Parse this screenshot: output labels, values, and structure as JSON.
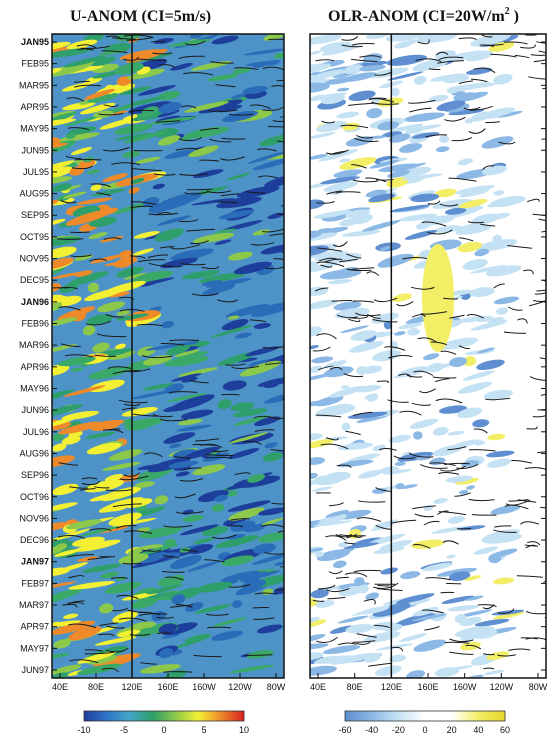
{
  "chart_data": [
    {
      "type": "heatmap",
      "title_main": "U-ANOM",
      "title_ci": "(CI=5m/s)",
      "x_ticks": [
        "40E",
        "80E",
        "120E",
        "160E",
        "160W",
        "120W",
        "80W"
      ],
      "y_ticks": [
        {
          "label": "JAN95",
          "bold": true
        },
        {
          "label": "FEB95",
          "bold": false
        },
        {
          "label": "MAR95",
          "bold": false
        },
        {
          "label": "APR95",
          "bold": false
        },
        {
          "label": "MAY95",
          "bold": false
        },
        {
          "label": "JUN95",
          "bold": false
        },
        {
          "label": "JUL95",
          "bold": false
        },
        {
          "label": "AUG95",
          "bold": false
        },
        {
          "label": "SEP95",
          "bold": false
        },
        {
          "label": "OCT95",
          "bold": false
        },
        {
          "label": "NOV95",
          "bold": false
        },
        {
          "label": "DEC95",
          "bold": false
        },
        {
          "label": "JAN96",
          "bold": true
        },
        {
          "label": "FEB96",
          "bold": false
        },
        {
          "label": "MAR96",
          "bold": false
        },
        {
          "label": "APR96",
          "bold": false
        },
        {
          "label": "MAY96",
          "bold": false
        },
        {
          "label": "JUN96",
          "bold": false
        },
        {
          "label": "JUL96",
          "bold": false
        },
        {
          "label": "AUG96",
          "bold": false
        },
        {
          "label": "SEP96",
          "bold": false
        },
        {
          "label": "OCT96",
          "bold": false
        },
        {
          "label": "NOV96",
          "bold": false
        },
        {
          "label": "DEC96",
          "bold": false
        },
        {
          "label": "JAN97",
          "bold": true
        },
        {
          "label": "FEB97",
          "bold": false
        },
        {
          "label": "MAR97",
          "bold": false
        },
        {
          "label": "APR97",
          "bold": false
        },
        {
          "label": "MAY97",
          "bold": false
        },
        {
          "label": "JUN97",
          "bold": false
        }
      ],
      "reference_line": "120E",
      "colorbar": {
        "ticks": [
          "-10",
          "-5",
          "0",
          "5",
          "10"
        ],
        "colors": [
          "#1e3e9c",
          "#2f74c8",
          "#44a6c8",
          "#2e9f6a",
          "#8cc84a",
          "#f3f034",
          "#ee8a2a",
          "#d62020"
        ]
      }
    },
    {
      "type": "heatmap",
      "title_main": "OLR-ANOM",
      "title_ci": "(CI=20W/m",
      "title_sup": "2",
      "title_end": ")",
      "x_ticks": [
        "40E",
        "80E",
        "120E",
        "160E",
        "160W",
        "120W",
        "80W"
      ],
      "reference_line": "120E",
      "colorbar": {
        "ticks": [
          "-60",
          "-40",
          "-20",
          "0",
          "20",
          "40",
          "60"
        ],
        "colors": [
          "#5f8fd0",
          "#8cb8e6",
          "#c5e2f4",
          "#ffffff",
          "#ffffff",
          "#f2ee66",
          "#e5d82a"
        ]
      }
    }
  ]
}
